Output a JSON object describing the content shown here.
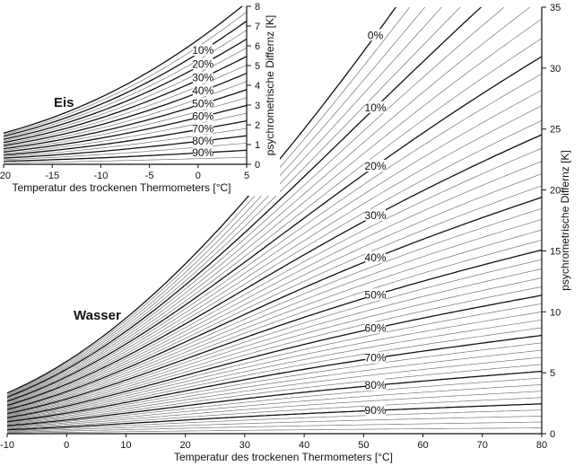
{
  "chart_data": [
    {
      "type": "line",
      "panel": "main",
      "region_label": "Wasser",
      "xlabel": "Temperatur des trockenen Thermometers [°C]",
      "ylabel": "psychrometrische Differnz [K]",
      "xlim": [
        -10,
        80
      ],
      "ylim": [
        0,
        35
      ],
      "xticks": [
        -10,
        0,
        10,
        20,
        30,
        40,
        50,
        60,
        70,
        80
      ],
      "yticks": [
        0,
        5,
        10,
        15,
        20,
        25,
        30,
        35
      ],
      "y_axis_side": "right",
      "series_rh_percent_step": 2,
      "series_rh_percent_range": [
        0,
        100
      ],
      "bold_every_percent": 10,
      "labels": [
        "0%",
        "10%",
        "20%",
        "30%",
        "40%",
        "50%",
        "60%",
        "70%",
        "80%",
        "90%"
      ],
      "label_at_x": 52,
      "grid": false
    },
    {
      "type": "line",
      "panel": "inset",
      "region_label": "Eis",
      "xlabel": "Temperatur des trockenen Thermometers [°C]",
      "ylabel": "psychrometrische Differnz [K]",
      "xlim": [
        -20,
        5
      ],
      "ylim": [
        0,
        8
      ],
      "xticks": [
        -20,
        -15,
        -10,
        -5,
        0,
        5
      ],
      "yticks": [
        0,
        1,
        2,
        3,
        4,
        5,
        6,
        7,
        8
      ],
      "y_axis_side": "right",
      "series_rh_percent_step": 5,
      "series_rh_percent_range": [
        0,
        100
      ],
      "bold_every_percent": 10,
      "labels": [
        "10%",
        "20%",
        "30%",
        "40%",
        "50%",
        "60%",
        "70%",
        "80%",
        "90%"
      ],
      "label_at_x": 0.5,
      "grid": false
    }
  ],
  "colors": {
    "bold_line": "#111111",
    "thin_line": "#777777",
    "axis": "#111111"
  }
}
